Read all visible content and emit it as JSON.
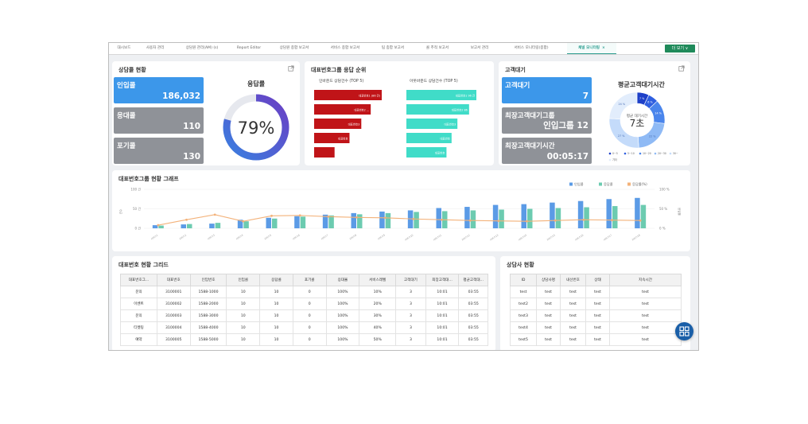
{
  "tabs": [
    {
      "label": "대시보드",
      "active": false
    },
    {
      "label": "사용자 관리",
      "active": false
    },
    {
      "label": "상담원 관리(AM) (s)",
      "active": false
    },
    {
      "label": "Report Editor",
      "active": false
    },
    {
      "label": "상담원 종합 보고서",
      "active": false
    },
    {
      "label": "서비스 종합 보고서",
      "active": false
    },
    {
      "label": "팀 종합 보고서",
      "active": false
    },
    {
      "label": "콜 추적 보고서",
      "active": false
    },
    {
      "label": "보고서 관리",
      "active": false
    },
    {
      "label": "서비스 모니터링(종합)",
      "active": false
    },
    {
      "label": "채널 모니터링",
      "active": true
    }
  ],
  "tab_close": "×",
  "more_button": "더 보기 ∨",
  "status": {
    "title": "상담콜 현황",
    "inbound_label": "인입콜",
    "inbound_value": "186,032",
    "answered_label": "응대콜",
    "answered_value": "110",
    "abandoned_label": "포기콜",
    "abandoned_value": "130",
    "rate_title": "응답률",
    "rate_text": "79%",
    "rate_value": 79
  },
  "ranking": {
    "title": "대표번호그룹 응답 순위",
    "left_title": "인바운드 상담건수 (TOP 5)",
    "right_title": "아웃바운드 상담건수 (TOP 5)",
    "left_bars": [
      {
        "label": "대표번호1 (86 건)",
        "value": 86
      },
      {
        "label": "대표번호2 ...",
        "value": 72
      },
      {
        "label": "대표번호3",
        "value": 60
      },
      {
        "label": "대표번호",
        "value": 45
      },
      {
        "label": "",
        "value": 26
      }
    ],
    "right_bars": [
      {
        "label": "대표번호1 96 건",
        "value": 96
      },
      {
        "label": "대표번호2 86",
        "value": 86
      },
      {
        "label": "대표번호3",
        "value": 70
      },
      {
        "label": "대표번호",
        "value": 62
      },
      {
        "label": "대표번호",
        "value": 55
      }
    ]
  },
  "waiting": {
    "title": "고객대기",
    "waiting_label": "고객대기",
    "waiting_value": "7",
    "longest_group_label": "최장고객대기그룹",
    "longest_group_value": "인입그룹 12",
    "longest_time_label": "최장고객대기시간",
    "longest_time_value": "00:05:17",
    "avg_title": "평균고객대기시간",
    "avg_center_label": "평균 대기시간",
    "avg_center_value": "7초",
    "donut": [
      {
        "label": "7 %",
        "value": 7,
        "color": "#1e40c8"
      },
      {
        "label": "6 %",
        "value": 6,
        "color": "#2f5fe0"
      },
      {
        "label": "14 %",
        "value": 14,
        "color": "#4a85ec"
      },
      {
        "label": "22 %",
        "value": 22,
        "color": "#8fbaf5"
      },
      {
        "label": "27 %",
        "value": 27,
        "color": "#c4dbfa"
      },
      {
        "label": "24 %",
        "value": 24,
        "color": "#e2edfc"
      }
    ],
    "legend": [
      "0~5",
      "5~10",
      "10~20",
      "20~30",
      "30~",
      "기타"
    ]
  },
  "trend": {
    "title": "대표번호그룹 현황 그래프",
    "legend": [
      "인입콜",
      "응답콜",
      "응답률(%)"
    ],
    "colors": {
      "inbound": "#5b9be6",
      "answered": "#6ccbb0",
      "rate": "#f3b27a"
    },
    "left_axis": [
      "100 건",
      "50 건",
      "0 건"
    ],
    "right_axis": [
      "100 %",
      "50 %",
      "0 %"
    ],
    "left_axis_title": "건수",
    "right_axis_title": "응답률",
    "chart_data": {
      "type": "bar",
      "categories": [
        "서비스1",
        "서비스2",
        "서비스3",
        "서비스4",
        "서비스5",
        "서비스6",
        "서비스7",
        "서비스8",
        "서비스9",
        "서비스10",
        "서비스11",
        "서비스12",
        "서비스13",
        "서비스14",
        "서비스15",
        "서비스16",
        "서비스17",
        "서비스18"
      ],
      "ylim": [
        0,
        100
      ],
      "series": [
        {
          "name": "인입콜",
          "values": [
            8,
            10,
            12,
            22,
            27,
            31,
            35,
            39,
            43,
            46,
            52,
            55,
            60,
            62,
            66,
            70,
            75,
            78
          ]
        },
        {
          "name": "응답콜",
          "values": [
            7,
            11,
            14,
            18,
            25,
            30,
            33,
            36,
            39,
            42,
            44,
            46,
            48,
            50,
            52,
            54,
            57,
            60
          ]
        },
        {
          "name": "응답률(%)",
          "values": [
            8,
            22,
            35,
            18,
            32,
            33,
            30,
            28,
            27,
            24,
            22,
            20,
            19,
            18,
            20,
            22,
            21,
            20
          ]
        }
      ]
    }
  },
  "grid": {
    "title": "대표번호 현황 그리드",
    "columns": [
      "대표번호그...",
      "대표번호",
      "인입번호",
      "인입콜",
      "응답콜",
      "포기콜",
      "응대율",
      "서비스레벨",
      "고객대기",
      "최장고객대...",
      "평균고객대..."
    ],
    "rows": [
      [
        "문의",
        "3100001",
        "1588-1000",
        "10",
        "10",
        "0",
        "100%",
        "10%",
        "3",
        "10:01",
        "03:55"
      ],
      [
        "이벤트",
        "3100002",
        "1588-2000",
        "10",
        "10",
        "0",
        "100%",
        "20%",
        "3",
        "10:01",
        "03:55"
      ],
      [
        "문의",
        "3100003",
        "1588-3000",
        "10",
        "10",
        "0",
        "100%",
        "30%",
        "3",
        "10:01",
        "03:55"
      ],
      [
        "티켓팅",
        "3100004",
        "1588-4000",
        "10",
        "10",
        "0",
        "100%",
        "40%",
        "3",
        "10:01",
        "03:55"
      ],
      [
        "예약",
        "3100005",
        "1588-5000",
        "10",
        "10",
        "0",
        "100%",
        "50%",
        "3",
        "10:01",
        "03:55"
      ]
    ]
  },
  "agents": {
    "title": "상담사 현황",
    "columns": [
      "ID",
      "상담사명",
      "내선번호",
      "상태",
      "지속시간"
    ],
    "rows": [
      [
        "test",
        "test",
        "test",
        "test",
        "test"
      ],
      [
        "test2",
        "test",
        "test",
        "test",
        "test"
      ],
      [
        "test3",
        "test",
        "test",
        "test",
        "test"
      ],
      [
        "test4",
        "test",
        "test",
        "test",
        "test"
      ],
      [
        "test5",
        "test",
        "test",
        "test",
        "test"
      ]
    ]
  }
}
